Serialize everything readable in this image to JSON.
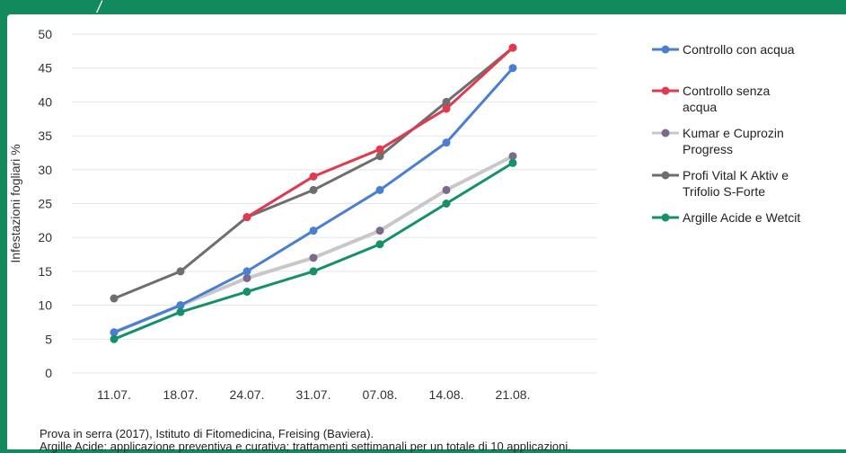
{
  "header_mark": "/",
  "chart_data": {
    "type": "line",
    "categories": [
      "11.07.",
      "18.07.",
      "24.07.",
      "31.07.",
      "07.08.",
      "14.08.",
      "21.08."
    ],
    "ylabel": "Infestazioni fogliari %",
    "ylim": [
      0,
      50
    ],
    "yticks": [
      0,
      5,
      10,
      15,
      20,
      25,
      30,
      35,
      40,
      45,
      50
    ],
    "grid": true,
    "legend_position": "right",
    "series": [
      {
        "name": "Controllo con acqua",
        "color": "#4a7fd0",
        "values": [
          6,
          10,
          15,
          21,
          27,
          34,
          45
        ]
      },
      {
        "name": "Controllo senza acqua",
        "color": "#e03a4f",
        "values": [
          null,
          null,
          23,
          29,
          33,
          39,
          48
        ]
      },
      {
        "name": "Kumar e Cuprozin Progress",
        "color": "#c8c8c8",
        "marker_color": "#7a6a8c",
        "values": [
          6,
          10,
          14,
          17,
          21,
          27,
          32
        ]
      },
      {
        "name": "Profi Vital K Aktiv e Trifolio S-Forte",
        "color": "#6e6e6e",
        "values": [
          11,
          15,
          23,
          27,
          32,
          40,
          48
        ]
      },
      {
        "name": "Argille Acide e Wetcit",
        "color": "#14916a",
        "values": [
          5,
          9,
          12,
          15,
          19,
          25,
          31
        ]
      }
    ]
  },
  "legend_lines": [
    [
      "Controllo con acqua"
    ],
    [
      "Controllo senza",
      "acqua"
    ],
    [
      "Kumar e Cuprozin",
      "Progress"
    ],
    [
      "Profi Vital K Aktiv e",
      "Trifolio S-Forte"
    ],
    [
      "Argille Acide e Wetcit"
    ]
  ],
  "caption": {
    "line1": "Prova in serra (2017), Istituto di Fitomedicina, Freising (Baviera).",
    "line2": "Argille Acide: applicazione preventiva e curativa; trattamenti settimanali per un totale di 10 applicazioni."
  }
}
